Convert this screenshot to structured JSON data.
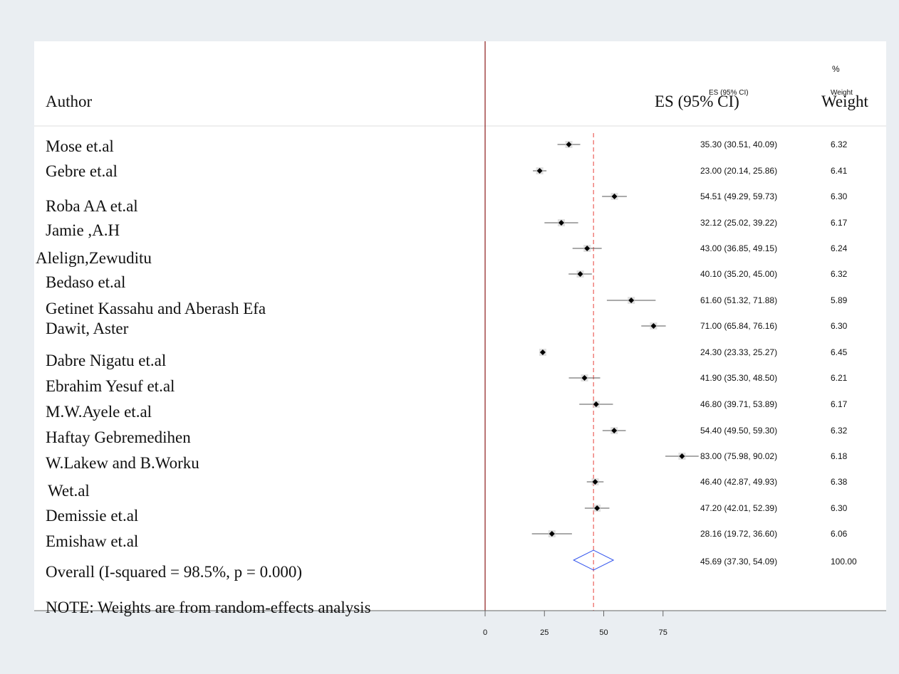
{
  "chart_data": {
    "type": "forest",
    "columns": {
      "author": "Author",
      "es_large": "ES (95% CI)",
      "es_small": "ES (95% CI)",
      "weight_large": "Weight",
      "weight_small": "Weight",
      "weight_pct": "%"
    },
    "studies": [
      {
        "author": "Mose et.al",
        "es": 35.3,
        "lo": 30.51,
        "hi": 40.09,
        "es_text": "35.30 (30.51, 40.09)",
        "weight": "6.32"
      },
      {
        "author": "Gebre et.al",
        "es": 23.0,
        "lo": 20.14,
        "hi": 25.86,
        "es_text": "23.00 (20.14, 25.86)",
        "weight": "6.41"
      },
      {
        "author": "Roba AA et.al",
        "es": 54.51,
        "lo": 49.29,
        "hi": 59.73,
        "es_text": "54.51 (49.29, 59.73)",
        "weight": "6.30"
      },
      {
        "author": "Jamie ,A.H",
        "es": 32.12,
        "lo": 25.02,
        "hi": 39.22,
        "es_text": "32.12 (25.02, 39.22)",
        "weight": "6.17"
      },
      {
        "author": "Alelign,Zewuditu",
        "es": 43.0,
        "lo": 36.85,
        "hi": 49.15,
        "es_text": "43.00 (36.85, 49.15)",
        "weight": "6.24"
      },
      {
        "author": "Bedaso et.al",
        "es": 40.1,
        "lo": 35.2,
        "hi": 45.0,
        "es_text": "40.10 (35.20, 45.00)",
        "weight": "6.32"
      },
      {
        "author": "Getinet Kassahu and Aberash Efa",
        "es": 61.6,
        "lo": 51.32,
        "hi": 71.88,
        "es_text": "61.60 (51.32, 71.88)",
        "weight": "5.89"
      },
      {
        "author": "Dawit, Aster",
        "es": 71.0,
        "lo": 65.84,
        "hi": 76.16,
        "es_text": "71.00 (65.84, 76.16)",
        "weight": "6.30"
      },
      {
        "author": "Dabre Nigatu et.al",
        "es": 24.3,
        "lo": 23.33,
        "hi": 25.27,
        "es_text": "24.30 (23.33, 25.27)",
        "weight": "6.45"
      },
      {
        "author": "Ebrahim Yesuf et.al",
        "es": 41.9,
        "lo": 35.3,
        "hi": 48.5,
        "es_text": "41.90 (35.30, 48.50)",
        "weight": "6.21"
      },
      {
        "author": "M.W.Ayele et.al",
        "es": 46.8,
        "lo": 39.71,
        "hi": 53.89,
        "es_text": "46.80 (39.71, 53.89)",
        "weight": "6.17"
      },
      {
        "author": "Haftay Gebremedihen",
        "es": 54.4,
        "lo": 49.5,
        "hi": 59.3,
        "es_text": "54.40 (49.50, 59.30)",
        "weight": "6.32"
      },
      {
        "author": "W.Lakew and B.Worku",
        "es": 83.0,
        "lo": 75.98,
        "hi": 90.02,
        "es_text": "83.00 (75.98, 90.02)",
        "weight": "6.18"
      },
      {
        "author": "Wet.al",
        "es": 46.4,
        "lo": 42.87,
        "hi": 49.93,
        "es_text": "46.40 (42.87, 49.93)",
        "weight": "6.38"
      },
      {
        "author": "Demissie et.al",
        "es": 47.2,
        "lo": 42.01,
        "hi": 52.39,
        "es_text": "47.20 (42.01, 52.39)",
        "weight": "6.30"
      },
      {
        "author": "Emishaw et.al",
        "es": 28.16,
        "lo": 19.72,
        "hi": 36.6,
        "es_text": "28.16 (19.72, 36.60)",
        "weight": "6.06"
      }
    ],
    "overall": {
      "label": "Overall (I-squared = 98.5%, p = 0.000)",
      "es": 45.69,
      "lo": 37.3,
      "hi": 54.09,
      "es_text": "45.69 (37.30, 54.09)",
      "weight": "100.00"
    },
    "note": "NOTE: Weights are from random-effects analysis",
    "x_ticks": [
      0,
      25,
      50,
      75
    ],
    "xlim": [
      0,
      170
    ],
    "null_line": 0,
    "colors": {
      "marker": "#000000",
      "ci_line": "#555555",
      "overall_diamond": "#3355ee",
      "overall_line": "#e8403a",
      "null_line": "#8b1a1a",
      "header_rule": "#dddddd",
      "axis": "#666666"
    }
  }
}
